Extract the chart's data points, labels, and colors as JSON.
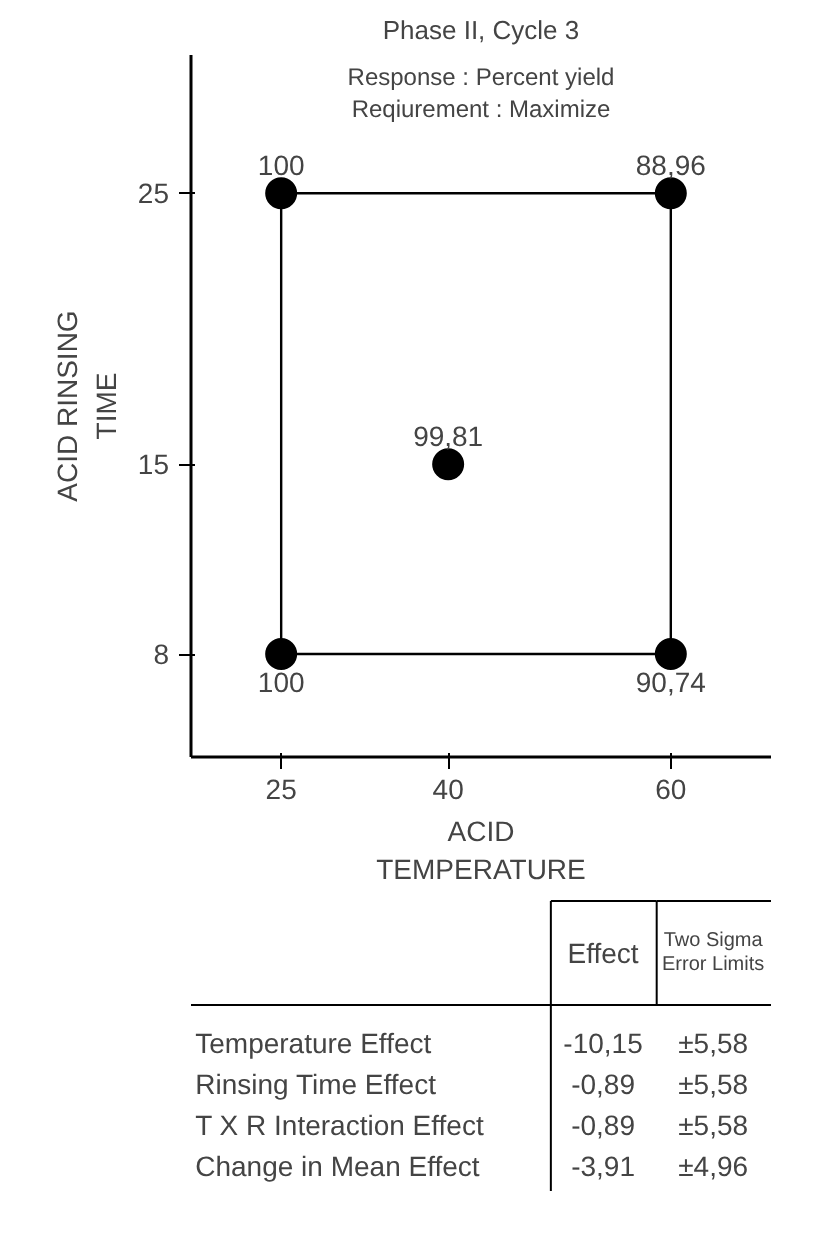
{
  "chart_data": [
    {
      "type": "scatter",
      "title": "Phase II, Cycle 3",
      "xlabel": "ACID\nTEMPERATURE",
      "ylabel": "ACID RINSING\nTIME",
      "annotations": [
        "Response : Percent yield",
        "Reqiurement : Maximize",
        {
          "text": "100",
          "x": 25,
          "y": 25
        },
        {
          "text": "88,96",
          "x": 60,
          "y": 25
        },
        {
          "text": "99,81",
          "x": 40,
          "y": 15
        },
        {
          "text": "100",
          "x": 25,
          "y": 8
        },
        {
          "text": "90,74",
          "x": 60,
          "y": 8
        }
      ],
      "xlim": [
        16.9,
        69
      ],
      "ylim": [
        4.2,
        30.1
      ],
      "xticks": [
        25,
        40,
        60
      ],
      "yticks": [
        8,
        15,
        25
      ],
      "grid": false,
      "series": [
        {
          "type": "line",
          "color": "#000000",
          "x": [
            25,
            25,
            60,
            60
          ],
          "values": [
            8,
            25,
            25,
            8
          ]
        },
        {
          "type": "line",
          "color": "#000000",
          "x": [
            25,
            60
          ],
          "values": [
            8,
            8
          ]
        },
        {
          "type": "scatter",
          "color": "#000000",
          "marker": "circle",
          "x": [
            25,
            60,
            40,
            25,
            60
          ],
          "values": [
            25,
            25,
            15,
            8,
            8
          ]
        }
      ]
    },
    {
      "type": "other",
      "annotations": [
        "Effect",
        "Two Sigma\nError Limits",
        "Temperature Effect",
        "-10,15",
        "±5,58",
        "Rinsing Time Effect",
        "-0,89",
        "±5,58",
        "T X R Interaction Effect",
        "-0,89",
        "±5,58",
        "Change in Mean Effect",
        "-3,91",
        "±4,96"
      ]
    }
  ]
}
